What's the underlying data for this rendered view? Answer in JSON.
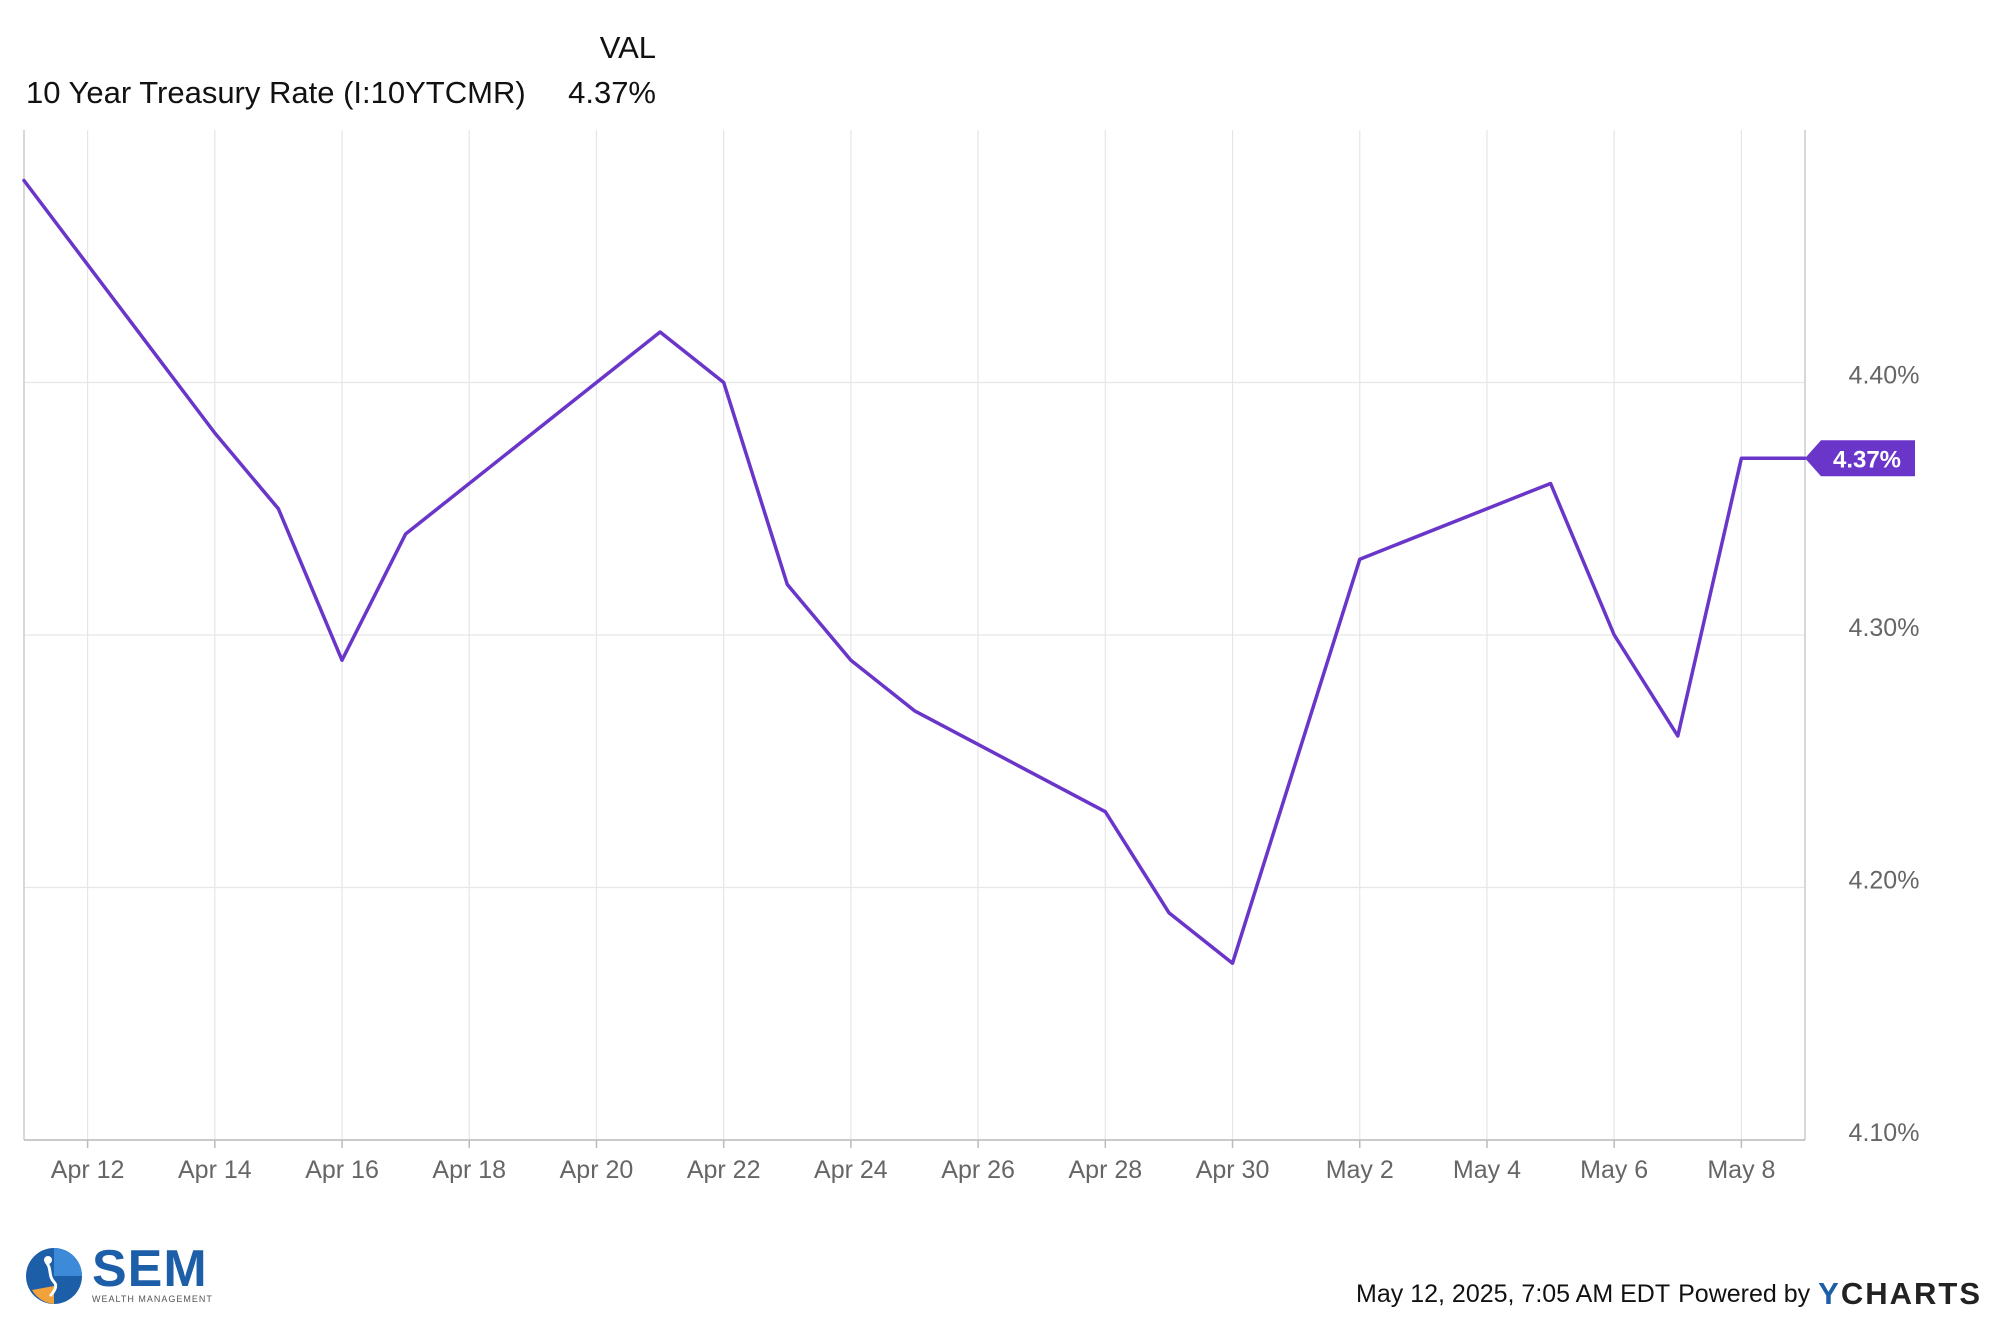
{
  "legend": {
    "header": "VAL",
    "series_name": "10 Year Treasury Rate (I:10YTCMR)",
    "series_value": "4.37%"
  },
  "footer": {
    "timestamp": "May 12, 2025, 7:05 AM EDT",
    "powered_by": "Powered by",
    "brand_prefix": "Y",
    "brand_rest": "CHARTS"
  },
  "logo": {
    "text": "SEM",
    "subtext": "WEALTH MANAGEMENT"
  },
  "colors": {
    "series": "#6a35c9",
    "grid": "#e6e6e6",
    "axis_text": "#666666",
    "brand_blue": "#1c5fa8"
  },
  "chart_data": {
    "type": "line",
    "series": [
      {
        "name": "10 Year Treasury Rate (I:10YTCMR)",
        "x": [
          "2025-04-11",
          "2025-04-14",
          "2025-04-15",
          "2025-04-16",
          "2025-04-17",
          "2025-04-21",
          "2025-04-22",
          "2025-04-23",
          "2025-04-24",
          "2025-04-25",
          "2025-04-28",
          "2025-04-29",
          "2025-04-30",
          "2025-05-01",
          "2025-05-02",
          "2025-05-05",
          "2025-05-06",
          "2025-05-07",
          "2025-05-08",
          "2025-05-09"
        ],
        "values": [
          4.48,
          4.38,
          4.35,
          4.29,
          4.34,
          4.42,
          4.4,
          4.32,
          4.29,
          4.27,
          4.23,
          4.19,
          4.17,
          4.25,
          4.33,
          4.36,
          4.3,
          4.26,
          4.37,
          4.37
        ],
        "last_value_label": "4.37%"
      }
    ],
    "x_ticks": [
      {
        "date": "2025-04-12",
        "label": "Apr 12"
      },
      {
        "date": "2025-04-14",
        "label": "Apr 14"
      },
      {
        "date": "2025-04-16",
        "label": "Apr 16"
      },
      {
        "date": "2025-04-18",
        "label": "Apr 18"
      },
      {
        "date": "2025-04-20",
        "label": "Apr 20"
      },
      {
        "date": "2025-04-22",
        "label": "Apr 22"
      },
      {
        "date": "2025-04-24",
        "label": "Apr 24"
      },
      {
        "date": "2025-04-26",
        "label": "Apr 26"
      },
      {
        "date": "2025-04-28",
        "label": "Apr 28"
      },
      {
        "date": "2025-04-30",
        "label": "Apr 30"
      },
      {
        "date": "2025-05-02",
        "label": "May 2"
      },
      {
        "date": "2025-05-04",
        "label": "May 4"
      },
      {
        "date": "2025-05-06",
        "label": "May 6"
      },
      {
        "date": "2025-05-08",
        "label": "May 8"
      }
    ],
    "y_ticks": [
      {
        "value": 4.1,
        "label": "4.10%"
      },
      {
        "value": 4.2,
        "label": "4.20%"
      },
      {
        "value": 4.3,
        "label": "4.30%"
      },
      {
        "value": 4.4,
        "label": "4.40%"
      }
    ],
    "xlim": [
      "2025-04-11",
      "2025-05-09"
    ],
    "ylim": [
      4.1,
      4.5
    ],
    "grid": true,
    "y_axis_position": "right",
    "legend_position": "top-left"
  }
}
